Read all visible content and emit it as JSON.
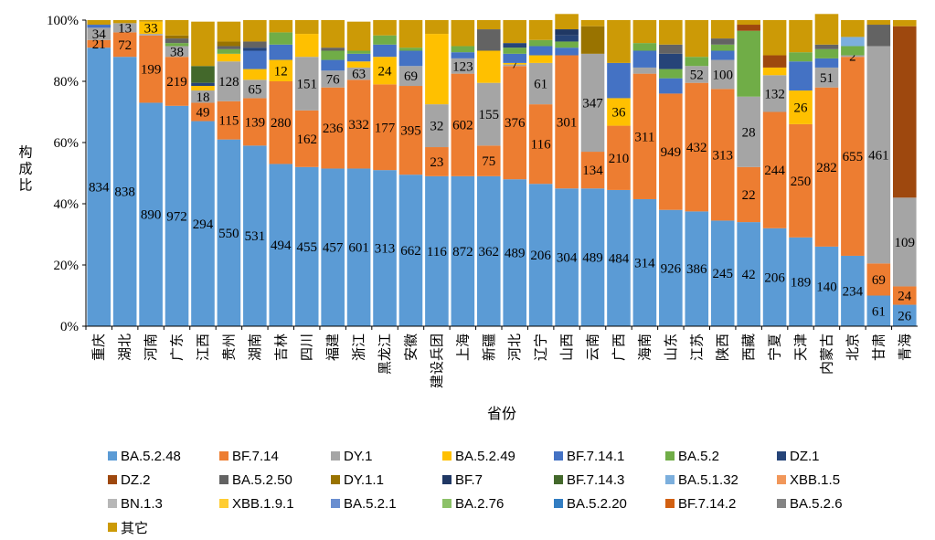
{
  "chart_data": {
    "type": "stacked-bar-100",
    "title": "",
    "xlabel": "省份",
    "ylabel": "构成比",
    "ylim": [
      0,
      100
    ],
    "y_ticks": [
      "0%",
      "20%",
      "40%",
      "60%",
      "80%",
      "100%"
    ],
    "categories": [
      "重庆",
      "湖北",
      "河南",
      "广东",
      "江西",
      "贵州",
      "湖南",
      "吉林",
      "四川",
      "福建",
      "浙江",
      "黑龙江",
      "安徽",
      "建设兵团",
      "上海",
      "新疆",
      "河北",
      "辽宁",
      "山西",
      "云南",
      "广西",
      "海南",
      "山东",
      "江苏",
      "陕西",
      "西藏",
      "宁夏",
      "天津",
      "内蒙古",
      "北京",
      "甘肃",
      "青海"
    ],
    "series": [
      {
        "name": "BA.5.2.48",
        "color": "#5b9bd5",
        "label_color": "#000000",
        "values": [
          91,
          88,
          73,
          72,
          67,
          61,
          59,
          53,
          52,
          51.5,
          51.5,
          51,
          49.5,
          49,
          49,
          49,
          48,
          46.5,
          45,
          45,
          44.5,
          41.5,
          38,
          37.5,
          34.5,
          34,
          32,
          29,
          26,
          23,
          10,
          7
        ],
        "labels": [
          "834",
          "838",
          "890",
          "972",
          "294",
          "550",
          "531",
          "494",
          "455",
          "457",
          "601",
          "313",
          "662",
          "116",
          "872",
          "362",
          "489",
          "206",
          "304",
          "489",
          "484",
          "314",
          "926",
          "386",
          "245",
          "42",
          "206",
          "189",
          "140",
          "234",
          "61",
          "26"
        ]
      },
      {
        "name": "BF.7.14",
        "color": "#ed7d31",
        "label_color": "#000000",
        "values": [
          2.5,
          8,
          22,
          16,
          6,
          12.5,
          15.5,
          27,
          18.5,
          26.5,
          29,
          28,
          29,
          9.5,
          33.5,
          10,
          37,
          26,
          43.5,
          12,
          21,
          41,
          38,
          42,
          43,
          18,
          38,
          37,
          52,
          65,
          10.5,
          6
        ],
        "labels": [
          "21",
          "72",
          "199",
          "219",
          "49",
          "115",
          "139",
          "280",
          "162",
          "236",
          "332",
          "177",
          "395",
          "23",
          "602",
          "75",
          "376",
          "116",
          "301",
          "134",
          "210",
          "311",
          "949",
          "432",
          "313",
          "22",
          "244",
          "250",
          "282",
          "655",
          "69",
          "24"
        ]
      },
      {
        "name": "DY.1",
        "color": "#a5a5a5",
        "label_color": "#000000",
        "values": [
          4,
          3,
          0.5,
          3.5,
          4,
          13,
          6,
          0,
          17.5,
          5.5,
          4,
          0,
          6.5,
          14,
          5,
          20.5,
          0.5,
          13.5,
          0,
          32,
          0,
          2,
          0,
          5.5,
          9.5,
          23,
          12,
          0,
          6.5,
          0.5,
          71,
          29
        ],
        "labels": [
          "34",
          "13",
          "",
          "38",
          "18",
          "128",
          "65",
          "",
          "151",
          "76",
          "63",
          "",
          "69",
          "32",
          "123",
          "155",
          "",
          "61",
          "",
          "347",
          "",
          "",
          "",
          "52",
          "100",
          "28",
          "132",
          "",
          "51",
          "2",
          "461",
          "109"
        ]
      },
      {
        "name": "BA.5.2.49",
        "color": "#ffc000",
        "label_color": "#000000",
        "values": [
          0,
          0,
          4,
          0,
          1.5,
          2.5,
          3.5,
          7,
          7.5,
          0,
          2,
          9,
          0,
          23,
          0,
          10.5,
          0.5,
          2.5,
          0,
          0,
          9,
          0,
          0,
          0,
          0,
          0,
          2.5,
          11,
          0,
          0,
          0,
          0
        ],
        "labels": [
          "",
          "",
          "33",
          "",
          "",
          "",
          "",
          "12",
          "",
          "",
          "",
          "24",
          "",
          "",
          "",
          "",
          "7",
          "",
          "",
          "",
          "36",
          "",
          "",
          "",
          "",
          "",
          "",
          "26",
          "",
          "",
          "",
          ""
        ]
      },
      {
        "name": "BF.7.14.1",
        "color": "#4472c4",
        "label_color": "#000000",
        "values": [
          1,
          0,
          0,
          0,
          0,
          0,
          6,
          5,
          0,
          3.5,
          2.5,
          4,
          5,
          0,
          2,
          0,
          3,
          3,
          2.5,
          0,
          11.5,
          5.5,
          5,
          0,
          3,
          0,
          0,
          9.5,
          3,
          0,
          0,
          0
        ],
        "labels": []
      },
      {
        "name": "BA.5.2",
        "color": "#70ad47",
        "label_color": "#000000",
        "values": [
          0,
          0,
          0,
          1,
          0,
          1.5,
          0,
          4,
          0,
          3,
          1,
          3,
          1,
          0,
          2,
          0,
          2,
          2,
          2,
          0,
          0,
          2.5,
          3,
          3,
          2,
          21.5,
          0,
          3,
          3,
          3,
          0,
          0
        ],
        "labels": []
      },
      {
        "name": "DZ.1",
        "color": "#264478",
        "label_color": "#000000",
        "values": [
          0,
          0,
          0,
          0,
          1,
          0,
          1,
          0,
          0,
          0,
          0,
          0,
          0,
          0,
          0,
          0,
          1.5,
          0,
          2,
          0,
          0,
          0,
          5,
          0,
          0,
          0,
          0,
          0,
          0,
          0,
          0,
          0
        ],
        "labels": []
      },
      {
        "name": "DZ.2",
        "color": "#9e480e",
        "label_color": "#000000",
        "values": [
          0,
          0,
          0,
          0,
          0,
          0,
          0,
          0,
          0,
          0,
          0,
          0,
          0,
          0,
          0,
          0,
          0,
          0,
          0,
          0,
          0,
          0,
          0,
          0,
          0,
          2,
          4,
          0,
          0,
          0,
          0,
          56
        ],
        "labels": []
      },
      {
        "name": "BA.5.2.50",
        "color": "#636363",
        "label_color": "#000000",
        "values": [
          0,
          0,
          0,
          1.5,
          0,
          1,
          2,
          0,
          0,
          1,
          0,
          0,
          0,
          0,
          0,
          7,
          0,
          0,
          0,
          0,
          0,
          0,
          3,
          0,
          2,
          0,
          0,
          0,
          1.5,
          0,
          7,
          0
        ],
        "labels": []
      },
      {
        "name": "DY.1.1",
        "color": "#997300",
        "label_color": "#000000",
        "values": [
          0,
          0,
          0,
          1,
          0,
          1.5,
          0,
          0,
          0,
          0,
          0,
          0,
          0,
          0,
          0,
          0,
          0,
          0,
          0,
          9,
          0,
          0,
          0,
          0,
          0,
          0,
          0,
          0,
          0,
          0,
          0,
          0
        ],
        "labels": []
      },
      {
        "name": "BF.7",
        "color": "#203864",
        "label_color": "#000000",
        "values": [
          0,
          0,
          0,
          0,
          0,
          0,
          0,
          0,
          0,
          0,
          0,
          0,
          0,
          0,
          0,
          0,
          0,
          0,
          2,
          0,
          0,
          0,
          0,
          0,
          0,
          0,
          0,
          0,
          0,
          0,
          0,
          0
        ],
        "labels": []
      },
      {
        "name": "BF.7.14.3",
        "color": "#43682b",
        "label_color": "#000000",
        "values": [
          0,
          0,
          0,
          0,
          5.5,
          0,
          0,
          0,
          0,
          0,
          0,
          0,
          0,
          0,
          0,
          0,
          0,
          0,
          0,
          0,
          0,
          0,
          0,
          0,
          0,
          0,
          0,
          0,
          0,
          0,
          0,
          0
        ],
        "labels": []
      },
      {
        "name": "BA.5.1.32",
        "color": "#7cafdd",
        "label_color": "#000000",
        "values": [
          0,
          0,
          0,
          0,
          0,
          0,
          0,
          0,
          0,
          0,
          0,
          0,
          0,
          0,
          0,
          0,
          0,
          0,
          0,
          0,
          0,
          0,
          0,
          0,
          0,
          0,
          0,
          0,
          0,
          3,
          0,
          0
        ],
        "labels": []
      },
      {
        "name": "XBB.1.5",
        "color": "#f1975a",
        "label_color": "#000000",
        "values": [
          0,
          0,
          0,
          0,
          0,
          0,
          0,
          0,
          0,
          0,
          0,
          0,
          0,
          0,
          0,
          0,
          0,
          0,
          0,
          0,
          0,
          0,
          0,
          0,
          0,
          0,
          0,
          0,
          0,
          0,
          0,
          0
        ],
        "labels": []
      },
      {
        "name": "BN.1.3",
        "color": "#b7b7b7",
        "label_color": "#000000",
        "values": [
          0,
          0,
          0,
          0,
          0,
          0,
          0,
          0,
          0,
          0,
          0,
          0,
          0,
          0,
          0,
          0,
          0,
          0,
          0,
          0,
          0,
          0,
          0,
          0,
          0,
          0,
          0,
          0,
          0,
          0,
          0,
          0
        ],
        "labels": []
      },
      {
        "name": "XBB.1.9.1",
        "color": "#ffcd33",
        "label_color": "#000000",
        "values": [
          0,
          0,
          0,
          0,
          0,
          0,
          0,
          0,
          0,
          0,
          0,
          0,
          0,
          0,
          0,
          0,
          0,
          0,
          0,
          0,
          0,
          0,
          0,
          0,
          0,
          0,
          0,
          0,
          0,
          0,
          0,
          0
        ],
        "labels": []
      },
      {
        "name": "BA.5.2.1",
        "color": "#698ed0",
        "label_color": "#000000",
        "values": [
          0,
          0,
          0,
          0,
          0,
          0,
          0,
          0,
          0,
          0,
          0,
          0,
          0,
          0,
          0,
          0,
          0,
          0,
          0,
          0,
          0,
          0,
          0,
          0,
          0,
          0,
          0,
          0,
          0,
          0,
          0,
          0
        ],
        "labels": []
      },
      {
        "name": "BA.2.76",
        "color": "#8cc168",
        "label_color": "#000000",
        "values": [
          0,
          0,
          0,
          0,
          0,
          0,
          0,
          0,
          0,
          0,
          0,
          0,
          0,
          0,
          0,
          0,
          0,
          0,
          0,
          0,
          0,
          0,
          0,
          0,
          0,
          0,
          0,
          0,
          0,
          0,
          0,
          0
        ],
        "labels": []
      },
      {
        "name": "BA.5.2.20",
        "color": "#327dc2",
        "label_color": "#000000",
        "values": [
          0,
          0,
          0,
          0,
          0,
          0,
          0,
          0,
          0,
          0,
          0,
          0,
          0,
          0,
          0,
          0,
          0,
          0,
          0,
          0,
          0,
          0,
          0,
          0,
          0,
          0,
          0,
          0,
          0,
          0,
          0,
          0
        ],
        "labels": []
      },
      {
        "name": "BF.7.14.2",
        "color": "#d26012",
        "label_color": "#000000",
        "values": [
          0,
          0,
          0,
          0,
          0,
          0,
          0,
          0,
          0,
          0,
          0,
          0,
          0,
          0,
          0,
          0,
          0,
          0,
          0,
          0,
          0,
          0,
          0,
          0,
          0,
          0,
          0,
          0,
          0,
          0,
          0,
          0
        ],
        "labels": []
      },
      {
        "name": "BA.5.2.6",
        "color": "#848484",
        "label_color": "#000000",
        "values": [
          0,
          0,
          0,
          0,
          0,
          0,
          0,
          0,
          0,
          0,
          0,
          0,
          0,
          0,
          0,
          0,
          0,
          0,
          0,
          0,
          0,
          0,
          0,
          0,
          0,
          0,
          0,
          0,
          0,
          0,
          0,
          0
        ],
        "labels": []
      },
      {
        "name": "其它",
        "color": "#cc9a06",
        "label_color": "#000000",
        "values": [
          1.5,
          1,
          0.5,
          5,
          14.5,
          6.5,
          7,
          4,
          4.5,
          9,
          9.5,
          5,
          9,
          4.5,
          8.5,
          3,
          7.5,
          6.5,
          5,
          2,
          14,
          7.5,
          8,
          12,
          6,
          1.5,
          11.5,
          10.5,
          10,
          5.5,
          1.5,
          2
        ],
        "labels": []
      }
    ]
  }
}
